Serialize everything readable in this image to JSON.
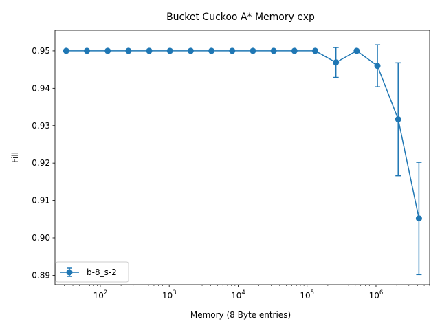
{
  "chart_data": {
    "type": "line",
    "title": "Bucket Cuckoo A* Memory exp",
    "xlabel": "Memory (8 Byte entries)",
    "ylabel": "Fill",
    "xscale": "log",
    "xlim": [
      22,
      6000000
    ],
    "ylim": [
      0.8875,
      0.9555
    ],
    "x_ticks": [
      {
        "value": 100,
        "base": "10",
        "exp": "2"
      },
      {
        "value": 1000,
        "base": "10",
        "exp": "3"
      },
      {
        "value": 10000,
        "base": "10",
        "exp": "4"
      },
      {
        "value": 100000,
        "base": "10",
        "exp": "5"
      },
      {
        "value": 1000000,
        "base": "10",
        "exp": "6"
      }
    ],
    "y_ticks": [
      {
        "value": 0.89,
        "label": "0.89"
      },
      {
        "value": 0.9,
        "label": "0.90"
      },
      {
        "value": 0.91,
        "label": "0.91"
      },
      {
        "value": 0.92,
        "label": "0.92"
      },
      {
        "value": 0.93,
        "label": "0.93"
      },
      {
        "value": 0.94,
        "label": "0.94"
      },
      {
        "value": 0.95,
        "label": "0.95"
      }
    ],
    "legend_position": "lower-left",
    "series": [
      {
        "name": "b-8_s-2",
        "color": "#1f77b4",
        "x": [
          32,
          64,
          128,
          256,
          512,
          1024,
          2048,
          4096,
          8192,
          16384,
          32768,
          65536,
          131072,
          262144,
          524288,
          1048576,
          2097152,
          4194304
        ],
        "y": [
          0.95,
          0.95,
          0.95,
          0.95,
          0.95,
          0.95,
          0.95,
          0.95,
          0.95,
          0.95,
          0.95,
          0.95,
          0.95,
          0.9469,
          0.95,
          0.946,
          0.9317,
          0.9052
        ],
        "err": [
          0,
          0,
          0,
          0,
          0,
          0,
          0,
          0,
          0,
          0,
          0,
          0,
          0,
          0.004,
          0,
          0.0056,
          0.0151,
          0.015
        ]
      }
    ]
  }
}
